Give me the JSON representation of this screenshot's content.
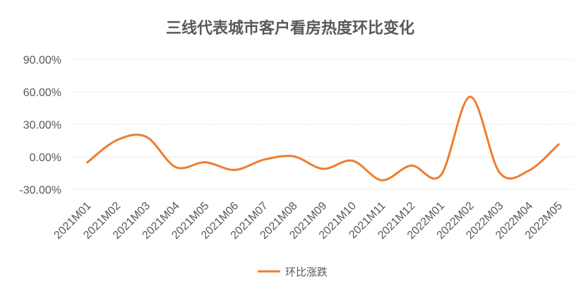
{
  "chart_data": {
    "type": "line",
    "title": "三线代表城市客户看房热度环比变化",
    "xlabel": "",
    "ylabel": "",
    "categories": [
      "2021M01",
      "2021M02",
      "2021M03",
      "2021M04",
      "2021M05",
      "2021M06",
      "2021M07",
      "2021M08",
      "2021M09",
      "2021M10",
      "2021M11",
      "2021M12",
      "2022M01",
      "2022M02",
      "2022M03",
      "2022M04",
      "2022M05"
    ],
    "series": [
      {
        "name": "环比涨跌",
        "color": "#ed7d31",
        "values": [
          -5.0,
          15.5,
          18.5,
          -9.5,
          -5.0,
          -12.0,
          -2.5,
          0.5,
          -11.0,
          -3.5,
          -21.5,
          -8.0,
          -17.0,
          55.5,
          -14.5,
          -12.5,
          11.5
        ]
      }
    ],
    "ylim": [
      -30,
      90
    ],
    "yticks": [
      -30,
      0,
      30,
      60,
      90
    ],
    "ytick_labels": [
      "-30.00%",
      "0.00%",
      "30.00%",
      "60.00%",
      "90.00%"
    ],
    "grid": true,
    "legend_position": "bottom"
  }
}
